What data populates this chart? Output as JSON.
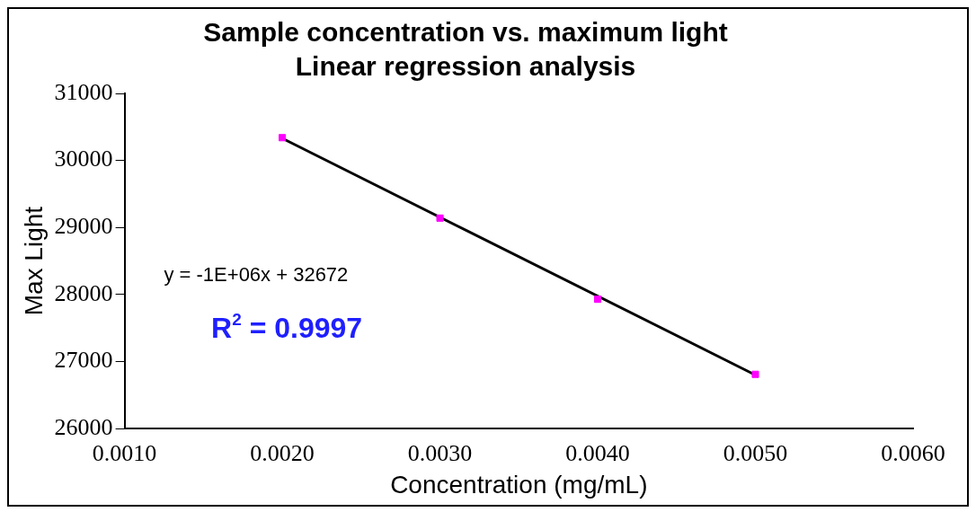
{
  "chart_data": {
    "type": "scatter",
    "title": "Sample concentration vs. maximum light",
    "subtitle": "Linear regression analysis",
    "xlabel": "Concentration (mg/mL)",
    "ylabel": "Max Light",
    "x": [
      0.002,
      0.003,
      0.004,
      0.005
    ],
    "series": [
      {
        "color": "#ff00ff",
        "marker": "square",
        "values": [
          30340,
          29140,
          27930,
          26810
        ]
      },
      {
        "type": "line",
        "color": "#000000",
        "marker": "none",
        "x": [
          0.002,
          0.005
        ],
        "values": [
          30330,
          26800
        ]
      }
    ],
    "xlim": [
      0.001,
      0.006
    ],
    "xticks": [
      {
        "value": 0.001,
        "label": "0.0010"
      },
      {
        "value": 0.002,
        "label": "0.0020"
      },
      {
        "value": 0.003,
        "label": "0.0030"
      },
      {
        "value": 0.004,
        "label": "0.0040"
      },
      {
        "value": 0.005,
        "label": "0.0050"
      },
      {
        "value": 0.006,
        "label": "0.0060"
      }
    ],
    "ylim": [
      26000,
      31000
    ],
    "yticks": [
      26000,
      27000,
      28000,
      29000,
      30000,
      31000
    ],
    "grid": false,
    "legend": false,
    "annotations": [
      "y = -1E+06x + 32672",
      "R$^{2}$ = 0.9997"
    ]
  }
}
